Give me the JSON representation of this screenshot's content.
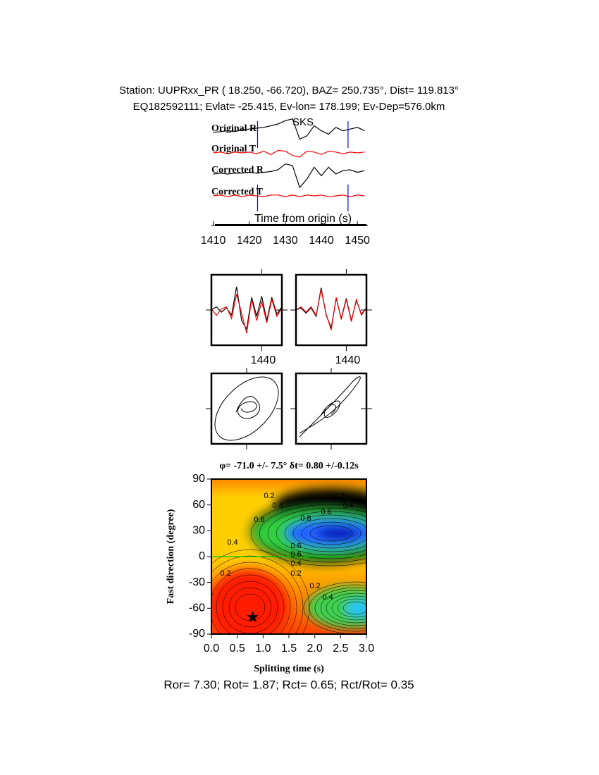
{
  "header": {
    "line1": "Station: UUPRxx_PR (  18.250,  -66.720), BAZ=  250.735°, Dist=  119.813°",
    "line2": "EQ182592111; Evlat= -25.415, Ev-lon= 178.199; Ev-Dep=576.0km"
  },
  "chart_data": [
    {
      "type": "line",
      "xlabel": "Time from origin (s)",
      "annotation": "SKS",
      "x": [
        1410,
        1412,
        1414,
        1416,
        1418,
        1420,
        1422,
        1424,
        1426,
        1428,
        1430,
        1432,
        1434,
        1436,
        1438,
        1440,
        1442,
        1444,
        1446,
        1448,
        1450,
        1452
      ],
      "xlim": [
        1409.5,
        1452.9
      ],
      "xticks": [
        1410,
        1420,
        1430,
        1440,
        1450
      ],
      "window": [
        1422.3,
        1447.4
      ],
      "window_color": "#0000ff",
      "series": [
        {
          "name": "Original R",
          "color": "#000000",
          "values": [
            0,
            0.1,
            0.2,
            0.1,
            0.3,
            0.4,
            0.5,
            0.6,
            0.8,
            1.0,
            1.4,
            1.6,
            -0.8,
            -0.4,
            0.8,
            0.2,
            -0.2,
            0.6,
            0.2,
            0.4,
            0.6,
            0.2
          ]
        },
        {
          "name": "Original T",
          "color": "#ff0000",
          "values": [
            0,
            0.1,
            -0.1,
            0.1,
            0,
            0.1,
            -0.1,
            0.2,
            -0.2,
            0.3,
            0.2,
            -0.3,
            -0.5,
            0.2,
            0.1,
            -0.2,
            0.2,
            0.1,
            -0.1,
            0.1,
            0,
            0.1
          ]
        },
        {
          "name": "Corrected R",
          "color": "#000000",
          "values": [
            0,
            0.1,
            0,
            0.1,
            0.1,
            0.2,
            0.1,
            0.2,
            0.3,
            0.5,
            1.2,
            1.0,
            -1.6,
            -0.6,
            0.8,
            -0.2,
            0.8,
            0,
            0.4,
            0.5,
            0.2,
            0.4
          ]
        },
        {
          "name": "Corrected T",
          "color": "#ff0000",
          "values": [
            0,
            0.1,
            -0.1,
            0.1,
            -0.1,
            0.1,
            0,
            -0.1,
            0.1,
            0.1,
            -0.1,
            0.1,
            -0.1,
            0.1,
            0,
            0.1,
            -0.1,
            0,
            0.1,
            -0.1,
            0.1,
            0
          ]
        }
      ]
    },
    {
      "type": "line",
      "x": [
        1420,
        1422,
        1424,
        1426,
        1428,
        1430,
        1432,
        1434,
        1436,
        1438,
        1440,
        1442,
        1444,
        1446,
        1448
      ],
      "xlim": [
        1420,
        1448
      ],
      "xticks": [
        1440
      ],
      "series": [
        {
          "color": "#000000",
          "values": [
            0,
            0.3,
            -0.2,
            0.2,
            -0.5,
            2.2,
            -1,
            -1.8,
            1.2,
            -0.6,
            1.3,
            -1,
            1.2,
            -0.4,
            0.3
          ]
        },
        {
          "color": "#ff0000",
          "values": [
            0.1,
            -0.5,
            0.1,
            0.3,
            -0.8,
            1.5,
            -0.3,
            -2.2,
            1,
            -1,
            0.8,
            -1.2,
            1,
            -0.6,
            0.2
          ]
        }
      ]
    },
    {
      "type": "line",
      "x": [
        1420,
        1422,
        1424,
        1426,
        1428,
        1430,
        1432,
        1434,
        1436,
        1438,
        1440,
        1442,
        1444,
        1446,
        1448
      ],
      "xlim": [
        1420,
        1448
      ],
      "xticks": [
        1440
      ],
      "series": [
        {
          "color": "#000000",
          "values": [
            0,
            0.2,
            -0.3,
            0.2,
            -0.6,
            2.1,
            -0.5,
            -1.7,
            1.1,
            -0.8,
            1.1,
            -1,
            0.9,
            -0.4,
            0.2
          ]
        },
        {
          "color": "#ff0000",
          "values": [
            0,
            0.3,
            -0.2,
            0.3,
            -0.5,
            1.9,
            -0.4,
            -1.9,
            1.2,
            -0.9,
            1.0,
            -1.1,
            1.0,
            -0.5,
            0.2
          ]
        }
      ]
    },
    {
      "type": "contour",
      "title": "φ= -71.0 +/- 7.5° δt= 0.80 +/-0.12s",
      "xlabel": "Splitting time (s)",
      "ylabel": "Fast direction (degree)",
      "xlim": [
        0,
        3
      ],
      "ylim": [
        -90,
        90
      ],
      "xticks": [
        {
          "value": 0,
          "label": "0.0"
        },
        {
          "value": 0.5,
          "label": "0.5"
        },
        {
          "value": 1,
          "label": "1.0"
        },
        {
          "value": 1.5,
          "label": "1.5"
        },
        {
          "value": 2,
          "label": "2.0"
        },
        {
          "value": 2.5,
          "label": "2.5"
        },
        {
          "value": 3,
          "label": "3.0"
        }
      ],
      "yticks": [
        -90,
        -60,
        -30,
        0,
        30,
        60,
        90
      ],
      "contour_labels": [
        "0.2",
        "0.4",
        "0.2",
        "0.4",
        "0.6",
        "0.8",
        "0.6",
        "0.4",
        "0.6",
        "0.6",
        "0.4",
        "0.2",
        "0.2",
        "0.2",
        "0.4"
      ],
      "best": {
        "x": 0.8,
        "y": -71
      }
    }
  ],
  "footer": "Ror= 7.30; Rot= 1.87; Rct= 0.65; Rct/Rot= 0.35"
}
